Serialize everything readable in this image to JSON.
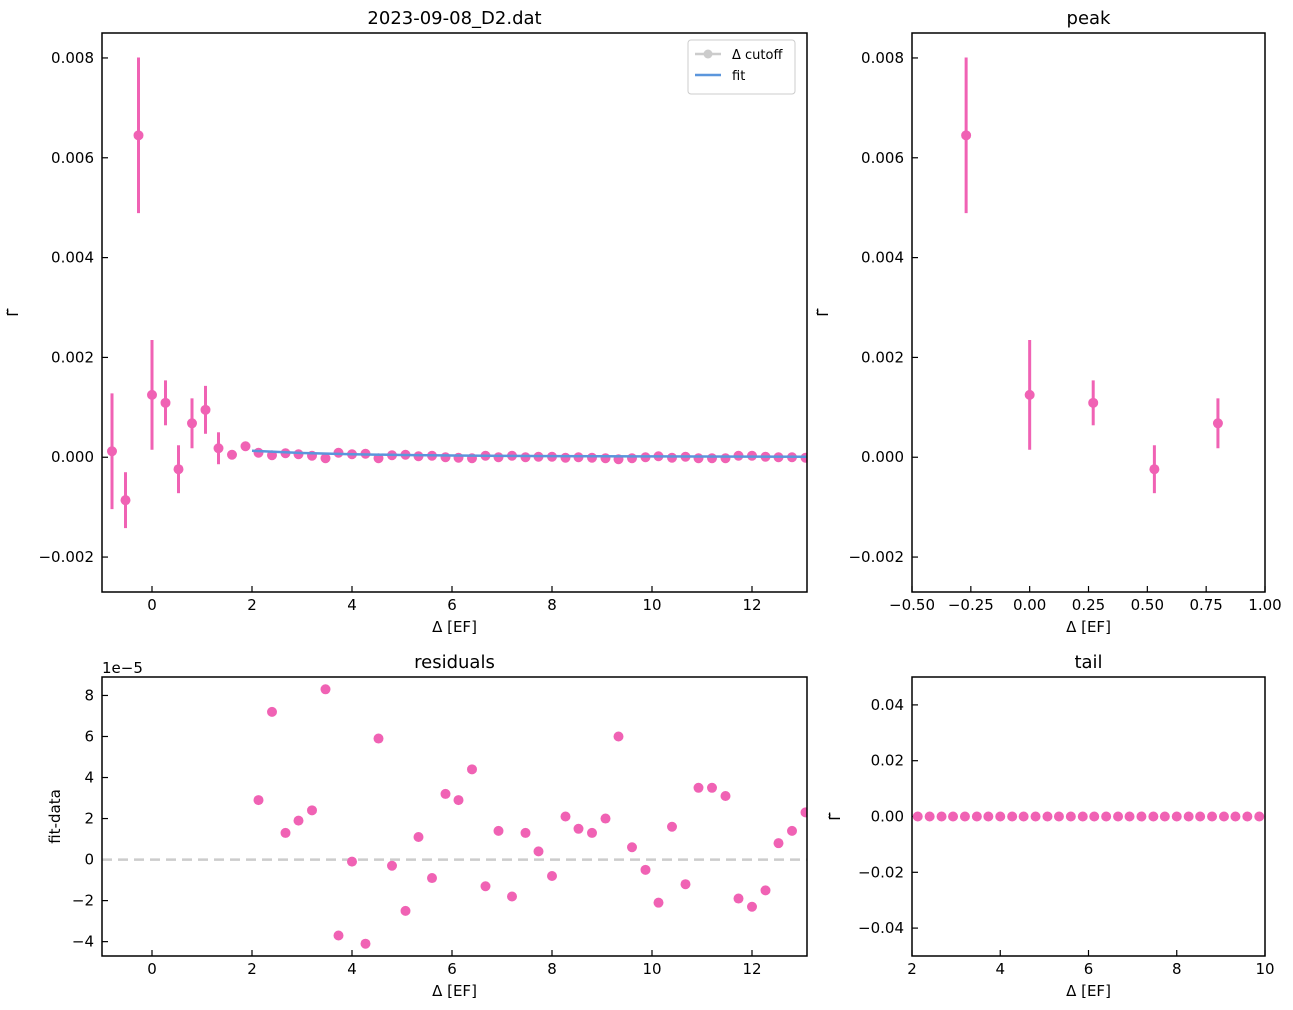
{
  "figure": {
    "suptitle": "",
    "colors": {
      "data": "#f062b4",
      "fit": "#5b96dc",
      "cutoff": "#cccccc",
      "axes": "#000000"
    }
  },
  "chart_data": [
    {
      "id": "main",
      "type": "scatter",
      "title": "2023-09-08_D2.dat",
      "xlabel": "Δ [EF]",
      "ylabel": "Γ̃",
      "xlim": [
        -1,
        13.1
      ],
      "ylim": [
        -0.0027,
        0.0085
      ],
      "xticks": [
        0,
        2,
        4,
        6,
        8,
        10,
        12
      ],
      "xtick_labels": [
        "0",
        "2",
        "4",
        "6",
        "8",
        "10",
        "12"
      ],
      "yticks": [
        -0.002,
        0.0,
        0.002,
        0.004,
        0.006,
        0.008
      ],
      "ytick_labels": [
        "−0.002",
        "0.000",
        "0.002",
        "0.004",
        "0.006",
        "0.008"
      ],
      "legend": {
        "position": "top-right",
        "entries": [
          {
            "label": "Δ cutoff",
            "style": "line-marker",
            "color": "#cccccc"
          },
          {
            "label": "fit",
            "style": "line",
            "color": "#5b96dc"
          }
        ]
      },
      "series": [
        {
          "kind": "errorbar",
          "color": "#f062b4",
          "x": [
            -0.8,
            -0.53,
            -0.27,
            0.0,
            0.27,
            0.53,
            0.8,
            1.07,
            1.33
          ],
          "y": [
            0.00012,
            -0.00086,
            0.00645,
            0.00125,
            0.00109,
            -0.00024,
            0.00068,
            0.00095,
            0.00018
          ],
          "yerr": [
            0.00116,
            0.00056,
            0.00156,
            0.0011,
            0.00045,
            0.00048,
            0.0005,
            0.00048,
            0.00032
          ]
        },
        {
          "kind": "points",
          "color": "#f062b4",
          "x": [
            1.6,
            1.87,
            2.13,
            2.4,
            2.67,
            2.93,
            3.2,
            3.47,
            3.73,
            4.0,
            4.27,
            4.53,
            4.8,
            5.07,
            5.33,
            5.6,
            5.87,
            6.13,
            6.4,
            6.67,
            6.93,
            7.2,
            7.47,
            7.73,
            8.0,
            8.27,
            8.53,
            8.8,
            9.07,
            9.33,
            9.6,
            9.87,
            10.13,
            10.4,
            10.67,
            10.93,
            11.2,
            11.47,
            11.73,
            12.0,
            12.27,
            12.53,
            12.8,
            13.07
          ],
          "y": [
            5e-05,
            0.00022,
            9e-05,
            4e-05,
            8e-05,
            6e-05,
            3e-05,
            -2e-05,
            9e-05,
            6e-05,
            7e-05,
            -2e-05,
            4e-05,
            5e-05,
            2e-05,
            3e-05,
            0.0,
            -1e-05,
            -2e-05,
            3e-05,
            0.0,
            3e-05,
            0.0,
            1e-05,
            1e-05,
            -1e-05,
            0.0,
            -1e-05,
            -2e-05,
            -4e-05,
            -2e-05,
            0.0,
            2e-05,
            -1e-05,
            1e-05,
            -2e-05,
            -2e-05,
            -2e-05,
            3e-05,
            3e-05,
            1e-05,
            0.0,
            0.0,
            -1e-05
          ]
        },
        {
          "kind": "line",
          "name": "fit",
          "color": "#5b96dc",
          "x": [
            2.0,
            3.0,
            4.0,
            5.0,
            6.0,
            7.0,
            8.0,
            9.0,
            10.0,
            11.0,
            12.0,
            13.1
          ],
          "y": [
            0.00013,
            8.5e-05,
            6e-05,
            4.5e-05,
            3.5e-05,
            2.8e-05,
            2.3e-05,
            2e-05,
            1.7e-05,
            1.5e-05,
            1.3e-05,
            1.1e-05
          ]
        }
      ]
    },
    {
      "id": "peak",
      "type": "scatter",
      "title": "peak",
      "xlabel": "Δ [EF]",
      "ylabel": "Γ̃",
      "xlim": [
        -0.5,
        1.0
      ],
      "ylim": [
        -0.0027,
        0.0085
      ],
      "xticks": [
        -0.5,
        -0.25,
        0.0,
        0.25,
        0.5,
        0.75,
        1.0
      ],
      "xtick_labels": [
        "−0.50",
        "−0.25",
        "0.00",
        "0.25",
        "0.50",
        "0.75",
        "1.00"
      ],
      "yticks": [
        -0.002,
        0.0,
        0.002,
        0.004,
        0.006,
        0.008
      ],
      "ytick_labels": [
        "−0.002",
        "0.000",
        "0.002",
        "0.004",
        "0.006",
        "0.008"
      ],
      "series": [
        {
          "kind": "errorbar",
          "color": "#f062b4",
          "x": [
            -0.27,
            0.0,
            0.27,
            0.53,
            0.8
          ],
          "y": [
            0.00645,
            0.00125,
            0.00109,
            -0.00024,
            0.00068
          ],
          "yerr": [
            0.00156,
            0.0011,
            0.00045,
            0.00048,
            0.0005
          ]
        }
      ]
    },
    {
      "id": "residuals",
      "type": "scatter",
      "title": "residuals",
      "xlabel": "Δ [EF]",
      "ylabel": "fit-data",
      "offset_label": "1e−5",
      "xlim": [
        -1,
        13.1
      ],
      "ylim": [
        -4.7,
        8.9
      ],
      "xticks": [
        0,
        2,
        4,
        6,
        8,
        10,
        12
      ],
      "xtick_labels": [
        "0",
        "2",
        "4",
        "6",
        "8",
        "10",
        "12"
      ],
      "yticks": [
        -4,
        -2,
        0,
        2,
        4,
        6,
        8
      ],
      "ytick_labels": [
        "−4",
        "−2",
        "0",
        "2",
        "4",
        "6",
        "8"
      ],
      "hline": {
        "y": 0,
        "style": "dashed",
        "color": "#cccccc"
      },
      "series": [
        {
          "kind": "points",
          "color": "#f062b4",
          "x": [
            2.13,
            2.4,
            2.67,
            2.93,
            3.2,
            3.47,
            3.73,
            4.0,
            4.27,
            4.53,
            4.8,
            5.07,
            5.33,
            5.6,
            5.87,
            6.13,
            6.4,
            6.67,
            6.93,
            7.2,
            7.47,
            7.73,
            8.0,
            8.27,
            8.53,
            8.8,
            9.07,
            9.33,
            9.6,
            9.87,
            10.13,
            10.4,
            10.67,
            10.93,
            11.2,
            11.47,
            11.73,
            12.0,
            12.27,
            12.53,
            12.8,
            13.07
          ],
          "y": [
            2.9,
            7.2,
            1.3,
            1.9,
            2.4,
            8.3,
            -3.7,
            -0.1,
            -4.1,
            5.9,
            -0.3,
            -2.5,
            1.1,
            -0.9,
            3.2,
            2.9,
            4.4,
            -1.3,
            1.4,
            -1.8,
            1.3,
            0.4,
            -0.8,
            2.1,
            1.5,
            1.3,
            2.0,
            6.0,
            0.6,
            -0.5,
            -2.1,
            1.6,
            -1.2,
            3.5,
            3.5,
            3.1,
            -1.9,
            -2.3,
            -1.5,
            0.8,
            1.4,
            2.3
          ]
        }
      ]
    },
    {
      "id": "tail",
      "type": "scatter",
      "title": "tail",
      "xlabel": "Δ [EF]",
      "ylabel": "Γ̃",
      "xlim": [
        2,
        10
      ],
      "ylim": [
        -0.05,
        0.05
      ],
      "xticks": [
        2,
        4,
        6,
        8,
        10
      ],
      "xtick_labels": [
        "2",
        "4",
        "6",
        "8",
        "10"
      ],
      "yticks": [
        -0.04,
        -0.02,
        0.0,
        0.02,
        0.04
      ],
      "ytick_labels": [
        "−0.04",
        "−0.02",
        "0.00",
        "0.02",
        "0.04"
      ],
      "series": [
        {
          "kind": "points",
          "color": "#f062b4",
          "x": [
            2.13,
            2.4,
            2.67,
            2.93,
            3.2,
            3.47,
            3.73,
            4.0,
            4.27,
            4.53,
            4.8,
            5.07,
            5.33,
            5.6,
            5.87,
            6.13,
            6.4,
            6.67,
            6.93,
            7.2,
            7.47,
            7.73,
            8.0,
            8.27,
            8.53,
            8.8,
            9.07,
            9.33,
            9.6,
            9.87
          ],
          "y": [
            0,
            0,
            0,
            0,
            0,
            0,
            0,
            0,
            0,
            0,
            0,
            0,
            0,
            0,
            0,
            0,
            0,
            0,
            0,
            0,
            0,
            0,
            0,
            0,
            0,
            0,
            0,
            0,
            0,
            0
          ]
        }
      ]
    }
  ]
}
